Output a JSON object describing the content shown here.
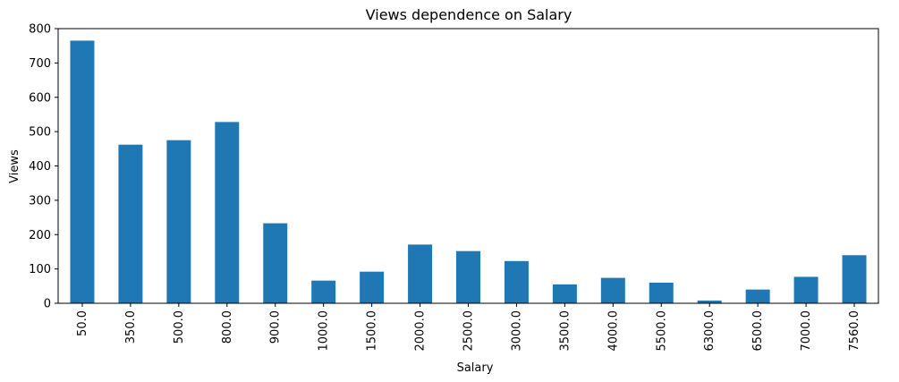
{
  "chart_data": {
    "type": "bar",
    "title": "Views dependence on Salary",
    "xlabel": "Salary",
    "ylabel": "Views",
    "categories": [
      "50.0",
      "350.0",
      "500.0",
      "800.0",
      "900.0",
      "1000.0",
      "1500.0",
      "2000.0",
      "2500.0",
      "3000.0",
      "3500.0",
      "4000.0",
      "5500.0",
      "6300.0",
      "6500.0",
      "7000.0",
      "7560.0"
    ],
    "values": [
      765,
      462,
      475,
      528,
      233,
      66,
      92,
      171,
      152,
      123,
      55,
      74,
      60,
      8,
      40,
      77,
      140
    ],
    "ylim": [
      0,
      800
    ],
    "yticks": [
      0,
      100,
      200,
      300,
      400,
      500,
      600,
      700,
      800
    ],
    "ytick_labels": [
      "0",
      "100",
      "200",
      "300",
      "400",
      "500",
      "600",
      "700",
      "800"
    ],
    "bar_color": "#1f77b4",
    "grid": false,
    "legend": false
  }
}
